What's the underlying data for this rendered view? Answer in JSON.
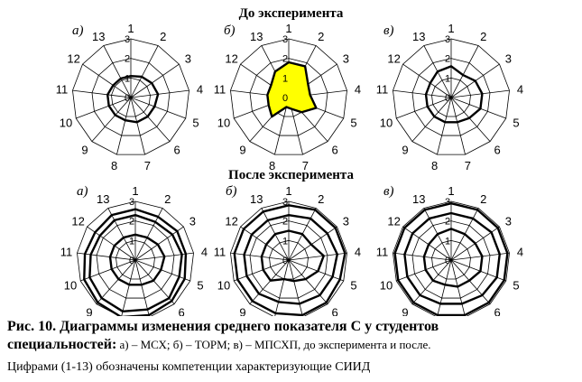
{
  "headings": {
    "before": "До эксперимента",
    "after": "После эксперимента"
  },
  "caption": {
    "line1": "Рис. 10. Диаграммы изменения среднего показателя С у студентов",
    "line2_bold": "специальностей:",
    "line2_rest": " а) – МСХ; б) – ТОРМ; в) – МПСХП, до эксперимента и после.",
    "line3": "Цифрами (1-13) обозначены компетенции характеризующие СИИД"
  },
  "chart_data": [
    {
      "type": "radar",
      "panel": "а)",
      "group": "До эксперимента",
      "categories": [
        "1",
        "2",
        "3",
        "4",
        "5",
        "6",
        "7",
        "8",
        "9",
        "10",
        "11",
        "12",
        "13"
      ],
      "rings": [
        0,
        1,
        2,
        3
      ],
      "ring_labels": [
        "0",
        "1",
        "2",
        "3"
      ],
      "rmax": 3,
      "values": [
        1.1,
        1.2,
        1.3,
        1.4,
        1.3,
        1.3,
        1.3,
        1.2,
        1.2,
        1.2,
        1.2,
        1.1,
        1.1
      ],
      "fill": "none",
      "series_color": "#000000"
    },
    {
      "type": "radar",
      "panel": "б)",
      "group": "До эксперимента",
      "categories": [
        "1",
        "2",
        "3",
        "4",
        "5",
        "6",
        "7",
        "8",
        "9",
        "10",
        "11",
        "12",
        "13"
      ],
      "rings": [
        0,
        1,
        2,
        3
      ],
      "ring_labels": [
        "0",
        "1",
        "2",
        "3"
      ],
      "rmax": 3,
      "values": [
        1.8,
        1.8,
        1.2,
        1.1,
        1.5,
        1.0,
        0.6,
        0.5,
        1.3,
        1.1,
        1.1,
        1.1,
        1.5
      ],
      "fill": "#ffff00",
      "series_color": "#000000"
    },
    {
      "type": "radar",
      "panel": "в)",
      "group": "До эксперимента",
      "categories": [
        "1",
        "2",
        "3",
        "4",
        "5",
        "6",
        "7",
        "8",
        "9",
        "10",
        "11",
        "12",
        "13"
      ],
      "rings": [
        0,
        1,
        2,
        3
      ],
      "ring_labels": [
        "0",
        "1",
        "2",
        "3"
      ],
      "rmax": 3,
      "values": [
        1.6,
        1.3,
        1.5,
        1.6,
        1.6,
        1.4,
        1.3,
        1.3,
        1.3,
        1.3,
        1.3,
        1.3,
        1.5
      ],
      "fill": "none",
      "series_color": "#000000"
    },
    {
      "type": "radar",
      "panel": "а)",
      "group": "После эксперимента",
      "categories": [
        "1",
        "2",
        "3",
        "4",
        "5",
        "6",
        "7",
        "8",
        "9",
        "10",
        "11",
        "12",
        "13"
      ],
      "rings": [
        0,
        1,
        2,
        3
      ],
      "ring_labels": [
        "0",
        "1",
        "2",
        "3"
      ],
      "rmax": 3,
      "series": [
        {
          "values": [
            1.3,
            1.3,
            1.4,
            1.5,
            1.4,
            1.4,
            1.3,
            1.3,
            1.3,
            1.3,
            1.3,
            1.3,
            1.3
          ]
        },
        {
          "values": [
            2.3,
            2.2,
            2.3,
            2.4,
            2.4,
            2.6,
            2.6,
            2.7,
            2.6,
            2.5,
            2.3,
            2.2,
            2.3
          ]
        },
        {
          "values": [
            2.6,
            2.5,
            2.6,
            2.6,
            2.7,
            2.8,
            2.9,
            3.0,
            2.9,
            2.8,
            2.6,
            2.5,
            2.6
          ]
        }
      ],
      "fill": "none",
      "series_color": "#000000"
    },
    {
      "type": "radar",
      "panel": "б)",
      "group": "После эксперимента",
      "categories": [
        "1",
        "2",
        "3",
        "4",
        "5",
        "6",
        "7",
        "8",
        "9",
        "10",
        "11",
        "12",
        "13"
      ],
      "rings": [
        0,
        1,
        2,
        3
      ],
      "ring_labels": [
        "0",
        "1",
        "2",
        "3"
      ],
      "rmax": 3,
      "series": [
        {
          "values": [
            1.5,
            1.5,
            1.4,
            1.8,
            1.6,
            1.3,
            1.1,
            1.0,
            1.4,
            1.4,
            1.4,
            1.4,
            1.5
          ]
        },
        {
          "values": [
            2.3,
            2.4,
            2.4,
            2.5,
            2.4,
            2.4,
            2.3,
            2.2,
            2.3,
            2.3,
            2.3,
            2.3,
            2.3
          ]
        },
        {
          "values": [
            2.8,
            2.9,
            2.9,
            2.9,
            2.8,
            2.9,
            2.9,
            2.8,
            2.8,
            2.8,
            2.8,
            2.8,
            2.8
          ]
        }
      ],
      "fill": "none",
      "series_color": "#000000"
    },
    {
      "type": "radar",
      "panel": "в)",
      "group": "После эксперимента",
      "categories": [
        "1",
        "2",
        "3",
        "4",
        "5",
        "6",
        "7",
        "8",
        "9",
        "10",
        "11",
        "12",
        "13"
      ],
      "rings": [
        0,
        1,
        2,
        3
      ],
      "ring_labels": [
        "0",
        "1",
        "2",
        "3"
      ],
      "rmax": 3,
      "series": [
        {
          "values": [
            1.6,
            1.5,
            1.5,
            1.6,
            1.6,
            1.4,
            1.4,
            1.3,
            1.4,
            1.4,
            1.4,
            1.4,
            1.5
          ]
        },
        {
          "values": [
            2.4,
            2.4,
            2.5,
            2.5,
            2.5,
            2.4,
            2.3,
            2.3,
            2.4,
            2.4,
            2.4,
            2.4,
            2.4
          ]
        },
        {
          "values": [
            2.9,
            2.9,
            2.9,
            2.9,
            2.9,
            2.9,
            2.9,
            2.9,
            2.9,
            2.9,
            2.9,
            2.9,
            2.9
          ]
        }
      ],
      "fill": "none",
      "series_color": "#000000"
    }
  ]
}
